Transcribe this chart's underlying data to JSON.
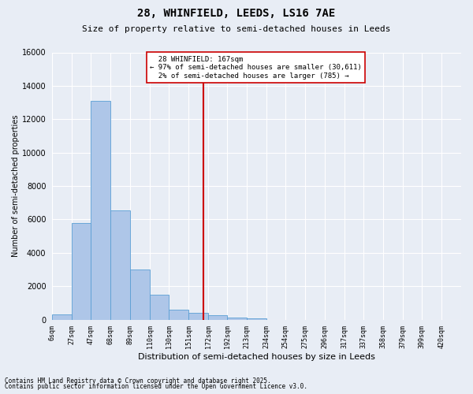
{
  "title": "28, WHINFIELD, LEEDS, LS16 7AE",
  "subtitle": "Size of property relative to semi-detached houses in Leeds",
  "xlabel": "Distribution of semi-detached houses by size in Leeds",
  "ylabel": "Number of semi-detached properties",
  "footnote1": "Contains HM Land Registry data © Crown copyright and database right 2025.",
  "footnote2": "Contains public sector information licensed under the Open Government Licence v3.0.",
  "property_label": "28 WHINFIELD: 167sqm",
  "pct_smaller": 97,
  "n_smaller": 30611,
  "pct_larger": 2,
  "n_larger": 785,
  "bin_labels": [
    "6sqm",
    "27sqm",
    "47sqm",
    "68sqm",
    "89sqm",
    "110sqm",
    "130sqm",
    "151sqm",
    "172sqm",
    "192sqm",
    "213sqm",
    "234sqm",
    "254sqm",
    "275sqm",
    "296sqm",
    "317sqm",
    "337sqm",
    "358sqm",
    "379sqm",
    "399sqm",
    "420sqm"
  ],
  "bin_edges": [
    6,
    27,
    47,
    68,
    89,
    110,
    130,
    151,
    172,
    192,
    213,
    234,
    254,
    275,
    296,
    317,
    337,
    358,
    379,
    399,
    420
  ],
  "bar_heights": [
    310,
    5800,
    13100,
    6550,
    3000,
    1500,
    620,
    390,
    260,
    130,
    100,
    0,
    0,
    0,
    0,
    0,
    0,
    0,
    0,
    0
  ],
  "bar_color": "#aec6e8",
  "bar_edge_color": "#5a9fd4",
  "vline_x": 167,
  "vline_color": "#cc0000",
  "box_color": "#cc0000",
  "ylim": [
    0,
    16000
  ],
  "background_color": "#e8edf5",
  "grid_color": "#ffffff",
  "title_fontsize": 10,
  "subtitle_fontsize": 8,
  "ylabel_fontsize": 7,
  "xlabel_fontsize": 8,
  "ytick_fontsize": 7,
  "xtick_fontsize": 6,
  "annot_fontsize": 6.5,
  "footnote_fontsize": 5.5
}
